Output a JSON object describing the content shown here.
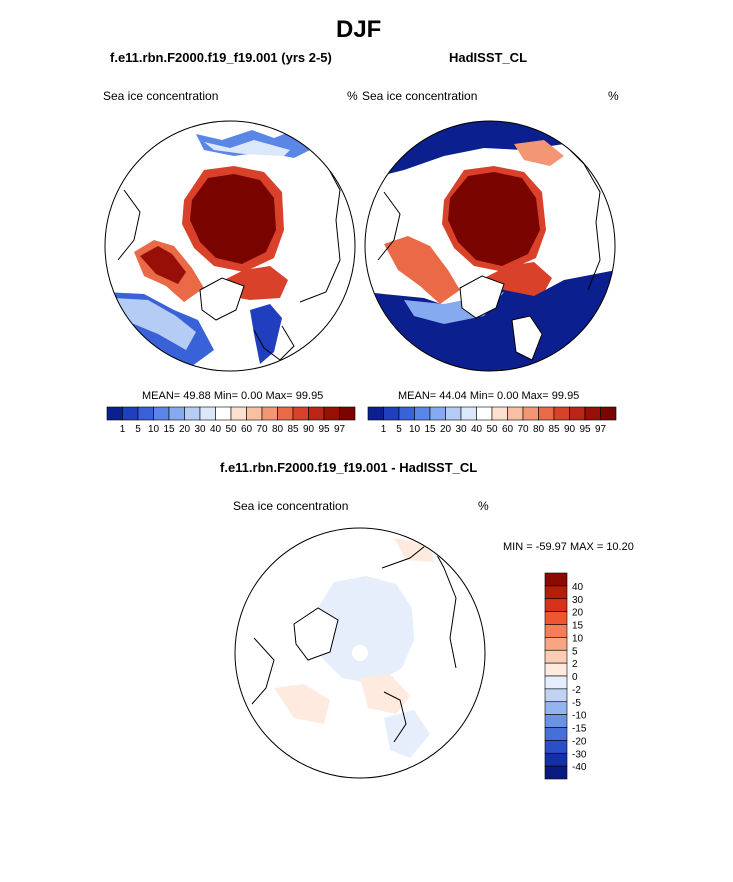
{
  "title": "DJF",
  "panels": [
    {
      "case_name": "f.e11.rbn.F2000.f19_f19.001 (yrs 2-5)",
      "variable_label": "Sea ice concentration",
      "units": "%",
      "stats": "MEAN=  49.88  Min=   0.00  Max=  99.95"
    },
    {
      "case_name": "HadISST_CL",
      "variable_label": "Sea ice concentration",
      "units": "%",
      "stats": "MEAN=  44.04  Min=   0.00  Max=  99.95"
    }
  ],
  "colorbar": {
    "tick_labels": [
      "1",
      "5",
      "10",
      "15",
      "20",
      "30",
      "40",
      "50",
      "60",
      "70",
      "80",
      "85",
      "90",
      "95",
      "97"
    ],
    "colors": [
      "#0c1f8f",
      "#1f3fbf",
      "#3a62d8",
      "#5a86e6",
      "#86aaf0",
      "#b5ccf5",
      "#dbe7fb",
      "#ffffff",
      "#fde0d0",
      "#f8bfa2",
      "#f29673",
      "#ea6a48",
      "#d9412a",
      "#bc2414",
      "#980f08",
      "#7a0400"
    ]
  },
  "difference": {
    "title": "f.e11.rbn.F2000.f19_f19.001 - HadISST_CL",
    "variable_label": "Sea ice concentration",
    "units": "%",
    "minmax": "MIN = -59.97 MAX =  10.20",
    "colorbar_labels": [
      "40",
      "30",
      "20",
      "15",
      "10",
      "5",
      "2",
      "0",
      "-2",
      "-5",
      "-10",
      "-15",
      "-20",
      "-30",
      "-40"
    ],
    "colorbar_colors": [
      "#8c0a00",
      "#b61c0a",
      "#d8331a",
      "#ee5530",
      "#f57e58",
      "#f8a583",
      "#fbcdb4",
      "#feeade",
      "#e6eefb",
      "#bfd3f5",
      "#94b4ee",
      "#6b92e4",
      "#4470d8",
      "#2a4fc6",
      "#1430a8",
      "#0a1a80"
    ]
  }
}
